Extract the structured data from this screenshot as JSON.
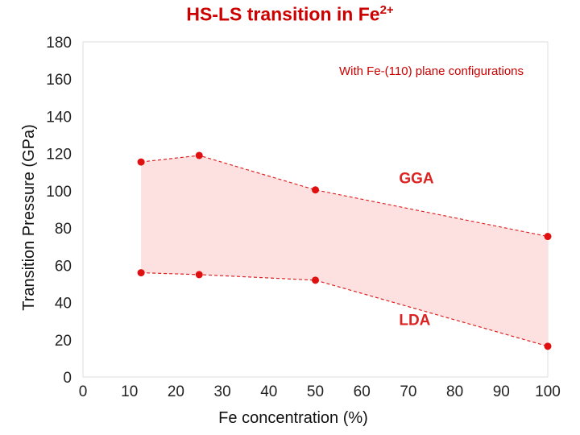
{
  "title": {
    "main": "HS-LS transition in Fe",
    "superscript": "2+"
  },
  "colors": {
    "band_fill": "#fde0e0",
    "line": "#dd2222",
    "point": "#e01010",
    "title": "#cc0000"
  },
  "chart_data": {
    "type": "line",
    "title": "HS-LS transition in Fe2+",
    "xlabel": "Fe concentration (%)",
    "ylabel": "Transition Pressure (GPa)",
    "xlim": [
      0,
      100
    ],
    "ylim": [
      0,
      180
    ],
    "xticks": [
      0,
      10,
      20,
      30,
      40,
      50,
      60,
      70,
      80,
      90,
      100
    ],
    "yticks": [
      0,
      20,
      40,
      60,
      80,
      100,
      120,
      140,
      160,
      180
    ],
    "grid": false,
    "annotation": "With Fe-(110) plane configurations",
    "series": [
      {
        "name": "GGA",
        "x": [
          12.5,
          25,
          50,
          100
        ],
        "y": [
          115.5,
          119,
          100.5,
          75.5
        ]
      },
      {
        "name": "LDA",
        "x": [
          12.5,
          25,
          50,
          100
        ],
        "y": [
          56,
          55,
          52,
          16.5
        ]
      }
    ]
  }
}
